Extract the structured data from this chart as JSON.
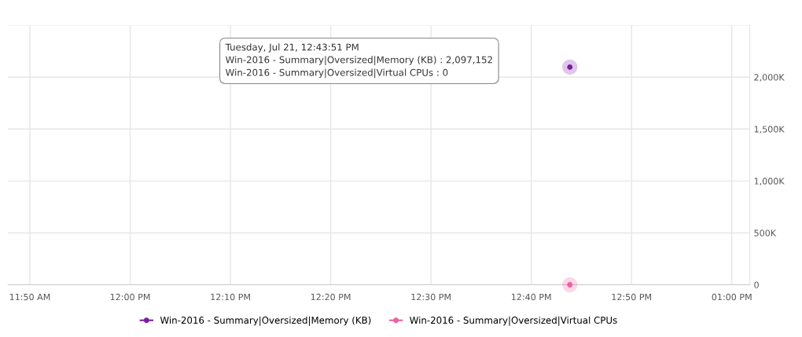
{
  "chart_data": {
    "type": "line",
    "x": [
      12.7308
    ],
    "series": [
      {
        "name": "Win-2016 - Summary|Oversized|Memory (KB)",
        "color": "#7b1fa2",
        "values": [
          2097152
        ]
      },
      {
        "name": "Win-2016 - Summary|Oversized|Virtual CPUs",
        "color": "#f0609e",
        "values": [
          0
        ]
      }
    ],
    "xlim": [
      11.797,
      13.03
    ],
    "xticks": [
      {
        "value": 11.8333,
        "label": "11:50 AM"
      },
      {
        "value": 12,
        "label": "12:00 PM"
      },
      {
        "value": 12.1667,
        "label": "12:10 PM"
      },
      {
        "value": 12.3333,
        "label": "12:20 PM"
      },
      {
        "value": 12.5,
        "label": "12:30 PM"
      },
      {
        "value": 12.6667,
        "label": "12:40 PM"
      },
      {
        "value": 12.8333,
        "label": "12:50 PM"
      },
      {
        "value": 13,
        "label": "01:00 PM"
      }
    ],
    "ylim": [
      0,
      2500000
    ],
    "yticks": [
      0,
      {
        "value": 500000,
        "label": "500K"
      },
      {
        "value": 1000000,
        "label": "1,000K"
      },
      {
        "value": 1500000,
        "label": "1,500K"
      },
      {
        "value": 2000000,
        "label": "2,000K"
      },
      {
        "value": 2500000,
        "label": null
      }
    ],
    "annotations": [
      "Tuesday, Jul 21, 12:43:51 PM",
      "Win-2016 - Summary|Oversized|Memory (KB) : 2,097,152",
      "Win-2016 - Summary|Oversized|Virtual CPUs : 0"
    ],
    "grid": true,
    "legend": "bottom",
    "marker": "circle",
    "line_style": "solid"
  }
}
